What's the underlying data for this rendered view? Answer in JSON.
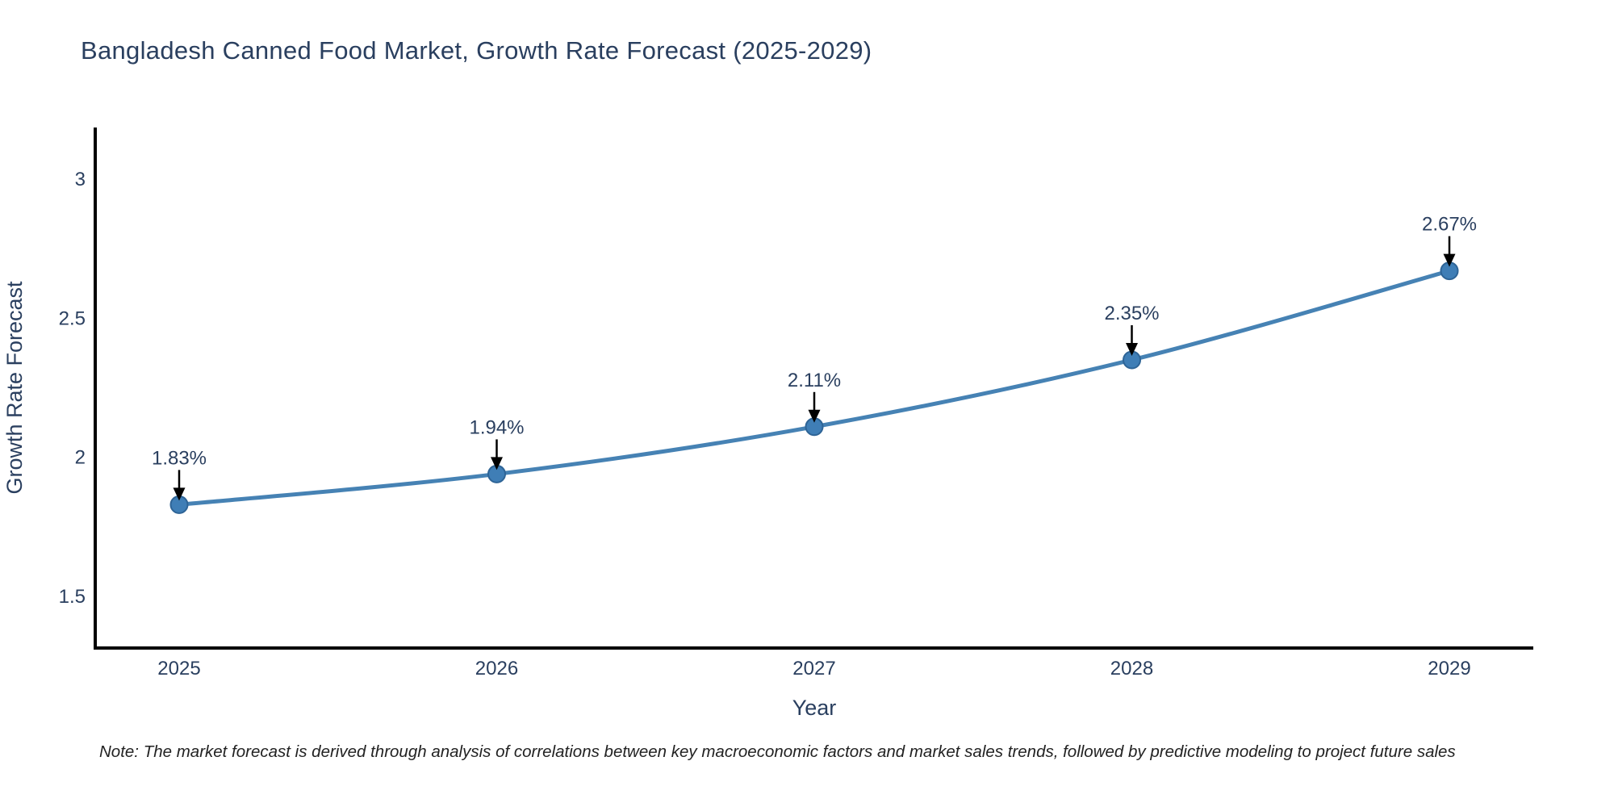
{
  "page": {
    "title": "Bangladesh Canned Food Market, Growth Rate Forecast (2025-2029)",
    "note": "Note: The market forecast is derived through analysis of correlations between key macroeconomic factors and market sales trends, followed by predictive modeling to project future sales"
  },
  "chart_data": {
    "type": "line",
    "title": "Bangladesh Canned Food Market, Growth Rate Forecast (2025-2029)",
    "xlabel": "Year",
    "ylabel": "Growth Rate Forecast",
    "categories": [
      "2025",
      "2026",
      "2027",
      "2028",
      "2029"
    ],
    "series": [
      {
        "name": "Growth Rate Forecast",
        "values": [
          1.83,
          1.94,
          2.11,
          2.35,
          2.67
        ]
      }
    ],
    "data_labels": [
      "1.83%",
      "1.94%",
      "2.11%",
      "2.35%",
      "2.67%"
    ],
    "line_shape": "spline",
    "markers": true,
    "grid": false,
    "legend_position": "none",
    "y_ticks": [
      "1.5",
      "2",
      "2.5",
      "3"
    ],
    "y_tick_values": [
      1.5,
      2,
      2.5,
      3
    ],
    "ylim": [
      1.315,
      3.185
    ],
    "colors": {
      "line": "#4682b4",
      "marker_fill": "#3f7eb6",
      "marker_edge": "#2e6496",
      "axis_line": "#000000",
      "text": "#2a3f5f",
      "annotation_arrow": "#000000",
      "note_text": "#222222"
    }
  }
}
